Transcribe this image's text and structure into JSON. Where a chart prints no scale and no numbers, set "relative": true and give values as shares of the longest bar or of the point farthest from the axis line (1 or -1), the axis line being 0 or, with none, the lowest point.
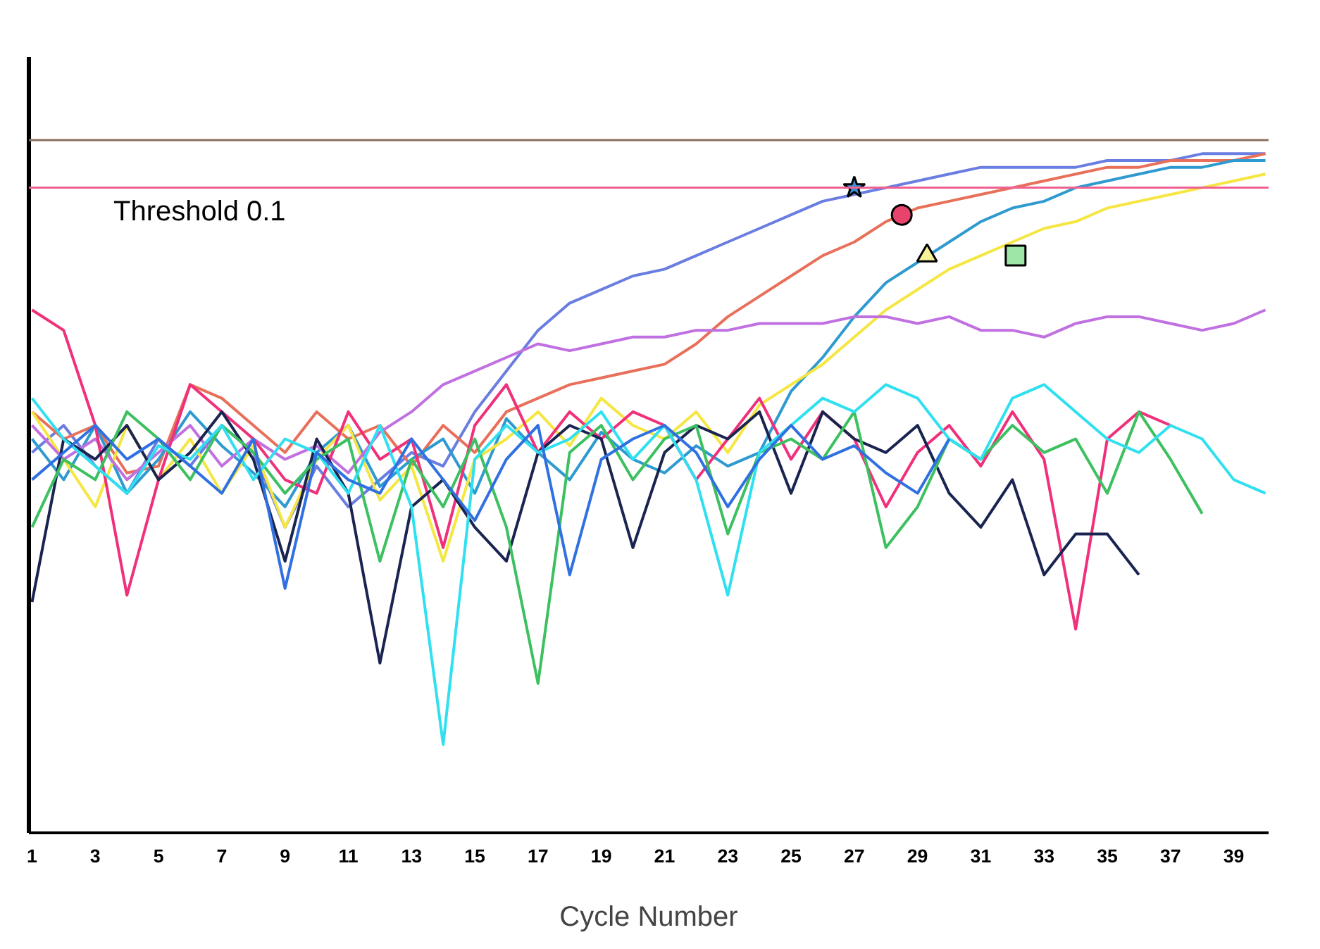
{
  "chart_data": {
    "type": "line",
    "relative": true,
    "xlabel": "Cycle Number",
    "x": [
      1,
      2,
      3,
      4,
      5,
      6,
      7,
      8,
      9,
      10,
      11,
      12,
      13,
      14,
      15,
      16,
      17,
      18,
      19,
      20,
      21,
      22,
      23,
      24,
      25,
      26,
      27,
      28,
      29,
      30,
      31,
      32,
      33,
      34,
      35,
      36,
      37,
      38,
      39,
      40
    ],
    "xlim": [
      0.9,
      40.1
    ],
    "xticks": [
      1,
      3,
      5,
      7,
      9,
      11,
      13,
      15,
      17,
      19,
      21,
      23,
      25,
      27,
      29,
      31,
      33,
      35,
      37,
      39
    ],
    "tick_labels": "x",
    "grid": false,
    "marker": "none",
    "line_style": "solid",
    "ref_lines": [
      {
        "axis": "y",
        "value": 0.95,
        "label": "Threshold 0.1",
        "color": "#f06090"
      },
      {
        "axis": "y",
        "value": 1.02,
        "label": null,
        "color": "#8b7060"
      }
    ],
    "series": [
      {
        "color": "#6a7de0",
        "values": [
          0.56,
          0.6,
          0.54,
          0.5,
          0.58,
          0.54,
          0.6,
          0.56,
          0.45,
          0.54,
          0.48,
          0.52,
          0.56,
          0.54,
          0.62,
          0.68,
          0.74,
          0.78,
          0.8,
          0.82,
          0.83,
          0.85,
          0.87,
          0.89,
          0.91,
          0.93,
          0.94,
          0.95,
          0.96,
          0.97,
          0.98,
          0.98,
          0.98,
          0.98,
          0.99,
          0.99,
          0.99,
          1.0,
          1.0,
          1.0
        ]
      },
      {
        "color": "#e8705a",
        "values": [
          0.62,
          0.58,
          0.6,
          0.53,
          0.54,
          0.66,
          0.64,
          0.6,
          0.56,
          0.62,
          0.58,
          0.6,
          0.54,
          0.6,
          0.56,
          0.62,
          0.64,
          0.66,
          0.67,
          0.68,
          0.69,
          0.72,
          0.76,
          0.79,
          0.82,
          0.85,
          0.87,
          0.9,
          0.92,
          0.93,
          0.94,
          0.95,
          0.96,
          0.97,
          0.98,
          0.98,
          0.99,
          0.99,
          0.99,
          1.0
        ]
      },
      {
        "color": "#2e9ad0",
        "values": [
          0.58,
          0.52,
          0.6,
          0.5,
          0.55,
          0.62,
          0.57,
          0.53,
          0.48,
          0.56,
          0.6,
          0.51,
          0.55,
          0.58,
          0.5,
          0.61,
          0.56,
          0.52,
          0.59,
          0.55,
          0.53,
          0.57,
          0.54,
          0.56,
          0.65,
          0.7,
          0.76,
          0.81,
          0.84,
          0.87,
          0.9,
          0.92,
          0.93,
          0.95,
          0.96,
          0.97,
          0.98,
          0.98,
          0.99,
          0.99
        ]
      },
      {
        "color": "#f5e642",
        "values": [
          0.62,
          0.55,
          0.48,
          0.6,
          0.52,
          0.58,
          0.5,
          0.57,
          0.45,
          0.55,
          0.6,
          0.49,
          0.54,
          0.4,
          0.55,
          0.58,
          0.62,
          0.57,
          0.64,
          0.6,
          0.58,
          0.62,
          0.56,
          0.63,
          0.66,
          0.69,
          0.73,
          0.77,
          0.8,
          0.83,
          0.85,
          0.87,
          0.89,
          0.9,
          0.92,
          0.93,
          0.94,
          0.95,
          0.96,
          0.97
        ]
      },
      {
        "color": "#c070e0",
        "values": [
          0.6,
          0.55,
          0.58,
          0.52,
          0.56,
          0.6,
          0.54,
          0.58,
          0.55,
          0.57,
          0.53,
          0.59,
          0.62,
          0.66,
          0.68,
          0.7,
          0.72,
          0.71,
          0.72,
          0.73,
          0.73,
          0.74,
          0.74,
          0.75,
          0.75,
          0.75,
          0.76,
          0.76,
          0.75,
          0.76,
          0.74,
          0.74,
          0.73,
          0.75,
          0.76,
          0.76,
          0.75,
          0.74,
          0.75,
          0.77
        ]
      },
      {
        "color": "#f0307a",
        "values": [
          0.77,
          0.74,
          0.6,
          0.35,
          0.52,
          0.66,
          0.62,
          0.58,
          0.52,
          0.5,
          0.62,
          0.55,
          0.58,
          0.42,
          0.6,
          0.66,
          0.56,
          0.62,
          0.58,
          0.62,
          0.6,
          0.52,
          0.58,
          0.64,
          0.55,
          0.62,
          0.58,
          0.48,
          0.56,
          0.6,
          0.54,
          0.62,
          0.55,
          0.3,
          0.58,
          0.62,
          0.6,
          null,
          null,
          null
        ]
      },
      {
        "color": "#1a2450",
        "values": [
          0.34,
          0.58,
          0.55,
          0.6,
          0.52,
          0.56,
          0.62,
          0.55,
          0.4,
          0.58,
          0.5,
          0.25,
          0.48,
          0.52,
          0.45,
          0.4,
          0.56,
          0.6,
          0.58,
          0.42,
          0.56,
          0.6,
          0.58,
          0.62,
          0.5,
          0.62,
          0.58,
          0.56,
          0.6,
          0.5,
          0.45,
          0.52,
          0.38,
          0.44,
          0.44,
          0.38,
          null,
          null,
          null,
          null
        ]
      },
      {
        "color": "#3cc060",
        "values": [
          0.45,
          0.55,
          0.52,
          0.62,
          0.58,
          0.52,
          0.6,
          0.56,
          0.5,
          0.55,
          0.58,
          0.4,
          0.55,
          0.48,
          0.58,
          0.45,
          0.22,
          0.56,
          0.6,
          0.52,
          0.58,
          0.6,
          0.44,
          0.56,
          0.58,
          0.55,
          0.62,
          0.42,
          0.48,
          0.58,
          0.55,
          0.6,
          0.56,
          0.58,
          0.5,
          0.62,
          0.55,
          0.47,
          null,
          null
        ]
      },
      {
        "color": "#30e0f0",
        "values": [
          0.64,
          0.58,
          0.54,
          0.5,
          0.57,
          0.55,
          0.6,
          0.52,
          0.58,
          0.56,
          0.5,
          0.6,
          0.48,
          0.13,
          0.55,
          0.6,
          0.56,
          0.58,
          0.62,
          0.55,
          0.6,
          0.52,
          0.35,
          0.56,
          0.6,
          0.64,
          0.62,
          0.66,
          0.64,
          0.58,
          0.55,
          0.64,
          0.66,
          0.62,
          0.58,
          0.56,
          0.6,
          0.58,
          0.52,
          0.5
        ]
      },
      {
        "color": "#3070e0",
        "values": [
          0.52,
          0.56,
          0.6,
          0.55,
          0.58,
          0.54,
          0.5,
          0.58,
          0.36,
          0.56,
          0.52,
          0.5,
          0.58,
          0.52,
          0.46,
          0.55,
          0.6,
          0.38,
          0.55,
          0.58,
          0.6,
          0.56,
          0.48,
          0.55,
          0.6,
          0.55,
          0.57,
          0.53,
          0.5,
          0.58,
          null,
          null,
          null,
          null,
          null,
          null,
          null,
          null,
          null,
          null
        ]
      },
      {
        "type": "scatter",
        "marker": "star",
        "color": "#3b8fd8",
        "x": [
          27
        ],
        "values": [
          0.95
        ]
      },
      {
        "type": "scatter",
        "marker": "circle",
        "color": "#e8436a",
        "x": [
          28.5
        ],
        "values": [
          0.91
        ]
      },
      {
        "type": "scatter",
        "marker": "triangle",
        "color": "#f7f29a",
        "x": [
          29.3
        ],
        "values": [
          0.85
        ]
      },
      {
        "type": "scatter",
        "marker": "square",
        "color": "#9ce6a8",
        "x": [
          32.1
        ],
        "values": [
          0.85
        ]
      }
    ]
  }
}
